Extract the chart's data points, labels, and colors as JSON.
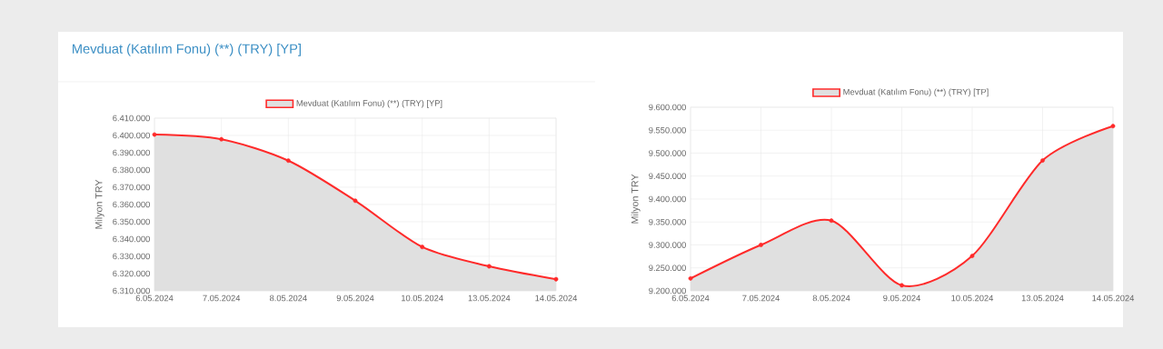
{
  "chart_data": [
    {
      "type": "area",
      "title": "Mevduat (Katılım Fonu) (**) (TRY) [YP]",
      "ylabel": "Milyon TRY",
      "categories": [
        "6.05.2024",
        "7.05.2024",
        "8.05.2024",
        "9.05.2024",
        "10.05.2024",
        "13.05.2024",
        "14.05.2024"
      ],
      "series": [
        {
          "name": "Mevduat (Katılım Fonu) (**) (TRY) [YP]",
          "color": "#ff2a2a",
          "values": [
            6400500,
            6397800,
            6385400,
            6362200,
            6335400,
            6324200,
            6316700
          ]
        }
      ],
      "ylim": [
        6310000,
        6410000
      ],
      "yticks": [
        {
          "value": 6310000,
          "label": "6.310.000"
        },
        {
          "value": 6320000,
          "label": "6.320.000"
        },
        {
          "value": 6330000,
          "label": "6.330.000"
        },
        {
          "value": 6340000,
          "label": "6.340.000"
        },
        {
          "value": 6350000,
          "label": "6.350.000"
        },
        {
          "value": 6360000,
          "label": "6.360.000"
        },
        {
          "value": 6370000,
          "label": "6.370.000"
        },
        {
          "value": 6380000,
          "label": "6.380.000"
        },
        {
          "value": 6390000,
          "label": "6.390.000"
        },
        {
          "value": 6400000,
          "label": "6.400.000"
        },
        {
          "value": 6410000,
          "label": "6.410.000"
        }
      ],
      "grid": true,
      "legend": "top",
      "marker": "circle"
    },
    {
      "type": "area",
      "ylabel": "Milyon TRY",
      "categories": [
        "6.05.2024",
        "7.05.2024",
        "8.05.2024",
        "9.05.2024",
        "10.05.2024",
        "13.05.2024",
        "14.05.2024"
      ],
      "series": [
        {
          "name": "Mevduat (Katılım Fonu) (**) (TRY) [TP]",
          "color": "#ff2a2a",
          "values": [
            9227000,
            9300000,
            9353000,
            9212000,
            9276000,
            9484000,
            9559000
          ]
        }
      ],
      "ylim": [
        9200000,
        9600000
      ],
      "yticks": [
        {
          "value": 9200000,
          "label": "9.200.000"
        },
        {
          "value": 9250000,
          "label": "9.250.000"
        },
        {
          "value": 9300000,
          "label": "9.300.000"
        },
        {
          "value": 9350000,
          "label": "9.350.000"
        },
        {
          "value": 9400000,
          "label": "9.400.000"
        },
        {
          "value": 9450000,
          "label": "9.450.000"
        },
        {
          "value": 9500000,
          "label": "9.500.000"
        },
        {
          "value": 9550000,
          "label": "9.550.000"
        },
        {
          "value": 9600000,
          "label": "9.600.000"
        }
      ],
      "grid": true,
      "legend": "top",
      "marker": "circle"
    }
  ]
}
